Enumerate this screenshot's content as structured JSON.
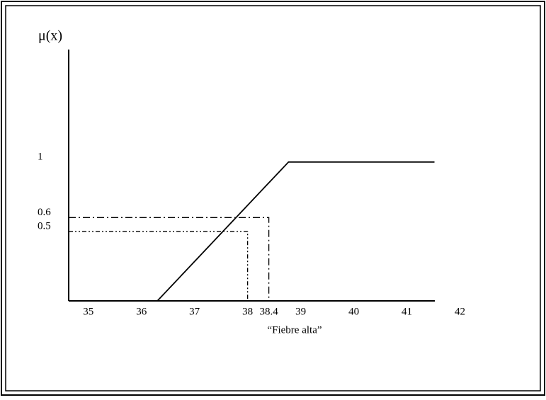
{
  "chart_data": {
    "type": "line",
    "y_axis_label": "μ(x)",
    "x_axis_label": "“Fiebre alta”",
    "series": [
      {
        "color": "#000000",
        "x": [
          34.63,
          36.3,
          38.77,
          41.52
        ],
        "values": [
          0,
          0,
          1,
          1
        ]
      }
    ],
    "reference_points": {
      "x": [
        38.4,
        38
      ],
      "values": [
        0.6,
        0.5
      ]
    },
    "xlim": [
      34.63,
      42.5
    ],
    "ylim": [
      0,
      1.81
    ],
    "xticks": [
      35,
      36,
      37,
      38,
      38.4,
      39,
      40,
      41,
      42
    ],
    "yticks": [
      0.5,
      0.6,
      1
    ],
    "grid": false
  }
}
